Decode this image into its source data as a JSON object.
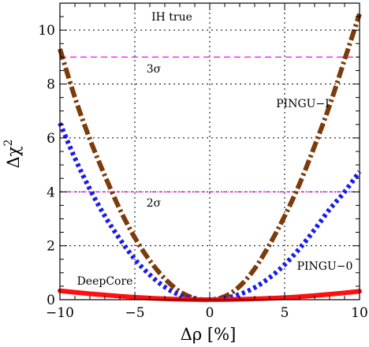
{
  "chart_data": {
    "type": "line",
    "xlabel": "Δρ [%]",
    "ylabel": "Δχ²",
    "ylabel_main": "Δχ",
    "ylabel_exp": "2",
    "xlim": [
      -10,
      10
    ],
    "ylim": [
      0,
      11
    ],
    "xticks": [
      -10,
      -5,
      0,
      5,
      10
    ],
    "yticks": [
      0,
      2,
      4,
      6,
      8,
      10
    ],
    "xtick_labels": [
      "−10",
      "−5",
      "0",
      "5",
      "10"
    ],
    "ytick_labels": [
      "0",
      "2",
      "4",
      "6",
      "8",
      "10"
    ],
    "grid": true,
    "annotations": {
      "scenario": "IH true",
      "sigma3": "3σ",
      "sigma2": "2σ",
      "pingu1": "PINGU−I",
      "pingu0": "PINGU−0",
      "deepcore": "DeepCore"
    },
    "reference_lines": [
      {
        "label": "3σ",
        "y": 9,
        "color": "#ff00ff"
      },
      {
        "label": "2σ",
        "y": 4,
        "color": "#cc00cc"
      }
    ],
    "series": [
      {
        "name": "PINGU−I",
        "color": "#7b3b0a",
        "style": "dashdot",
        "x": [
          -10,
          -9,
          -8,
          -7,
          -6,
          -5,
          -4,
          -3,
          -2,
          -1,
          0,
          1,
          2,
          3,
          4,
          5,
          6,
          7,
          8,
          9,
          10
        ],
        "y": [
          9.3,
          7.5,
          5.95,
          4.6,
          3.35,
          2.3,
          1.45,
          0.78,
          0.3,
          0.05,
          0.0,
          0.12,
          0.5,
          1.15,
          2.05,
          3.1,
          4.3,
          5.7,
          7.2,
          8.9,
          10.6
        ]
      },
      {
        "name": "PINGU−0",
        "color": "#1a1aee",
        "style": "dotted",
        "x": [
          -10,
          -9,
          -8,
          -7,
          -6,
          -5,
          -4,
          -3,
          -2,
          -1,
          0,
          1,
          2,
          3,
          4,
          5,
          6,
          7,
          8,
          9,
          10
        ],
        "y": [
          6.55,
          5.25,
          4.1,
          3.1,
          2.25,
          1.5,
          0.92,
          0.47,
          0.17,
          0.02,
          0.0,
          0.05,
          0.2,
          0.45,
          0.82,
          1.3,
          1.9,
          2.6,
          3.35,
          4.0,
          4.75
        ]
      },
      {
        "name": "DeepCore",
        "color": "#ff1010",
        "style": "solid",
        "x": [
          -10,
          -8,
          -6,
          -4,
          -2,
          0,
          2,
          4,
          6,
          8,
          10
        ],
        "y": [
          0.33,
          0.22,
          0.13,
          0.06,
          0.015,
          0.0,
          0.015,
          0.05,
          0.11,
          0.2,
          0.31
        ]
      }
    ]
  }
}
